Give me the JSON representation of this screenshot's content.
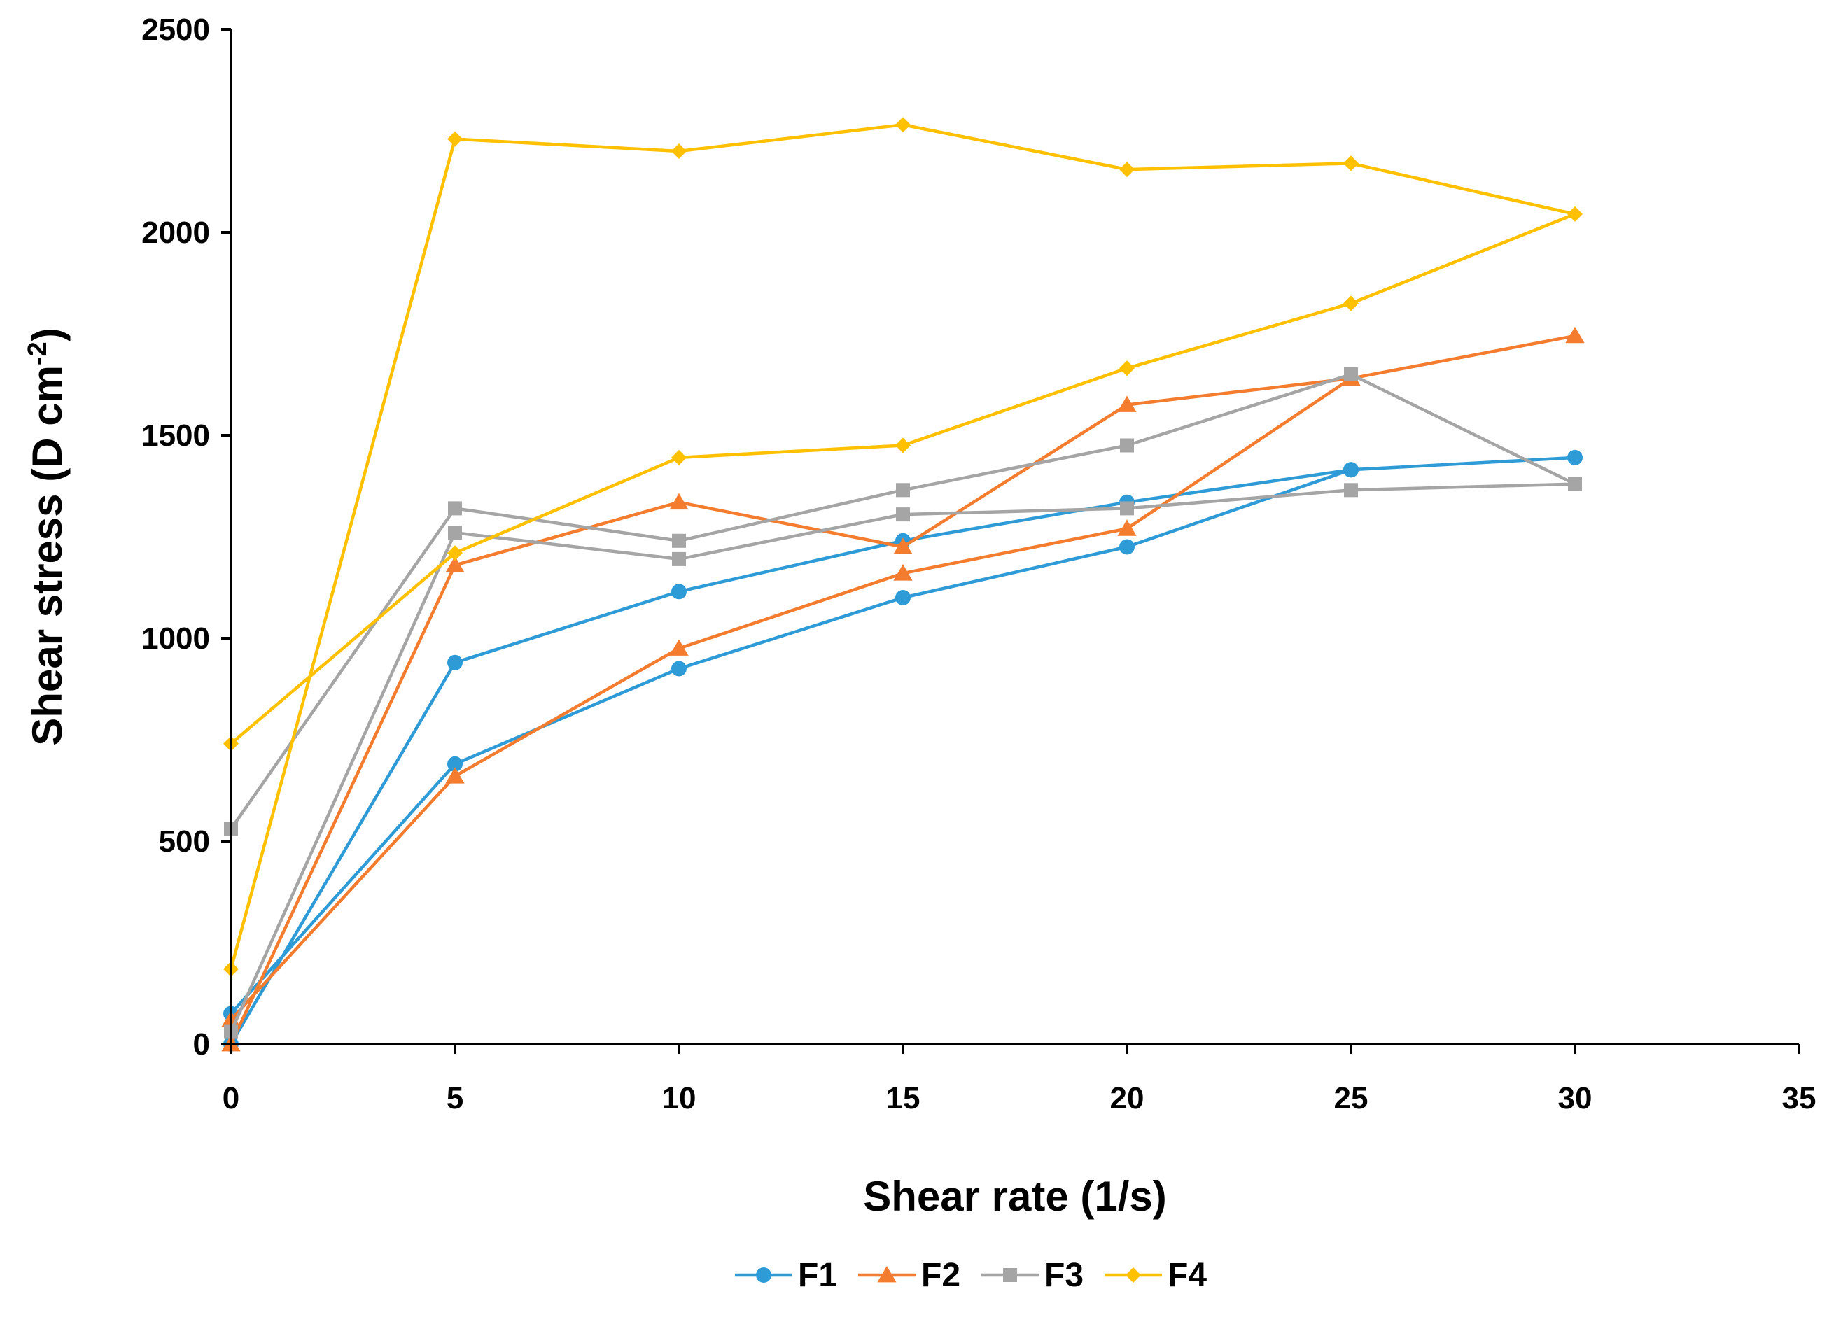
{
  "chart_data": {
    "type": "line",
    "title": "",
    "xlabel": "Shear rate (1/s)",
    "ylabel_main": "Shear stress (D cm",
    "ylabel_sup": "-2",
    "ylabel_end": ")",
    "xlim": [
      0,
      35
    ],
    "ylim": [
      0,
      2500
    ],
    "xticks": [
      "0",
      "5",
      "10",
      "15",
      "20",
      "25",
      "30",
      "35"
    ],
    "yticks": [
      "0",
      "500",
      "1000",
      "1500",
      "2000",
      "2500"
    ],
    "grid": false,
    "legend_position": "bottom-center",
    "series": [
      {
        "name": "F1",
        "color": "#2e9bd6",
        "marker": "circle",
        "x": [
          0,
          5,
          10,
          15,
          20,
          25,
          30,
          25,
          20,
          15,
          10,
          5,
          0
        ],
        "y": [
          0,
          940,
          1115,
          1240,
          1335,
          1415,
          1445,
          1415,
          1225,
          1100,
          925,
          690,
          75
        ]
      },
      {
        "name": "F2",
        "color": "#f47c2f",
        "marker": "triangle",
        "x": [
          0,
          5,
          10,
          15,
          20,
          25,
          30,
          25,
          20,
          15,
          10,
          5,
          0
        ],
        "y": [
          0,
          1180,
          1335,
          1225,
          1575,
          1640,
          1745,
          1640,
          1270,
          1160,
          975,
          660,
          60
        ]
      },
      {
        "name": "F3",
        "color": "#a5a5a5",
        "marker": "square",
        "x": [
          0,
          5,
          10,
          15,
          20,
          25,
          30,
          25,
          20,
          15,
          10,
          5,
          0
        ],
        "y": [
          530,
          1320,
          1240,
          1365,
          1475,
          1650,
          1380,
          1365,
          1320,
          1305,
          1195,
          1260,
          30
        ]
      },
      {
        "name": "F4",
        "color": "#ffc000",
        "marker": "diamond",
        "x": [
          0,
          5,
          10,
          15,
          20,
          25,
          30,
          25,
          20,
          15,
          10,
          5,
          0
        ],
        "y": [
          740,
          1210,
          1445,
          1475,
          1665,
          1825,
          2045,
          2170,
          2155,
          2265,
          2200,
          2230,
          185
        ]
      }
    ]
  }
}
